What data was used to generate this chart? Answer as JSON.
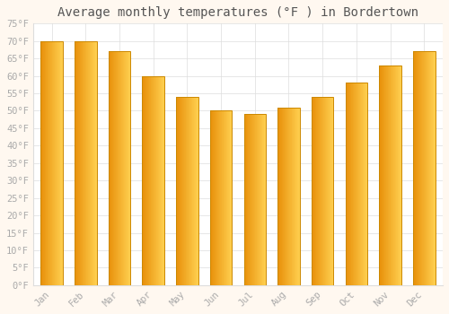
{
  "title": "Average monthly temperatures (°F ) in Bordertown",
  "months": [
    "Jan",
    "Feb",
    "Mar",
    "Apr",
    "May",
    "Jun",
    "Jul",
    "Aug",
    "Sep",
    "Oct",
    "Nov",
    "Dec"
  ],
  "values": [
    70,
    70,
    67,
    60,
    54,
    50,
    49,
    51,
    54,
    58,
    63,
    67
  ],
  "bar_color_left": "#E8900A",
  "bar_color_right": "#FFD050",
  "bar_edge_color": "#CC8800",
  "background_color": "#FFF8F0",
  "plot_bg_color": "#FFFFFF",
  "grid_color": "#DDDDDD",
  "ylim": [
    0,
    75
  ],
  "yticks": [
    0,
    5,
    10,
    15,
    20,
    25,
    30,
    35,
    40,
    45,
    50,
    55,
    60,
    65,
    70,
    75
  ],
  "tick_label_color": "#AAAAAA",
  "title_color": "#555555",
  "title_fontsize": 10,
  "tick_fontsize": 7.5,
  "ylabel_suffix": "°F",
  "bar_width": 0.65
}
